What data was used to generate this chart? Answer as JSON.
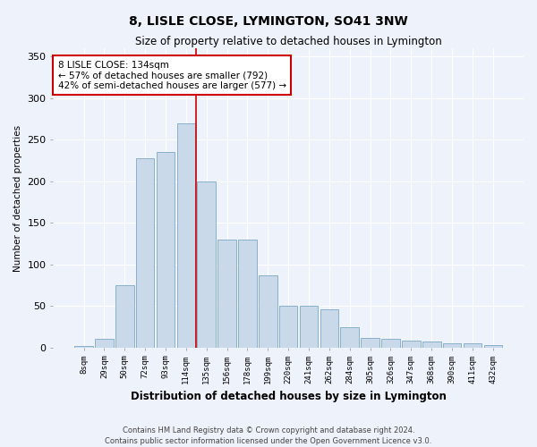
{
  "title": "8, LISLE CLOSE, LYMINGTON, SO41 3NW",
  "subtitle": "Size of property relative to detached houses in Lymington",
  "xlabel": "Distribution of detached houses by size in Lymington",
  "ylabel": "Number of detached properties",
  "categories": [
    "8sqm",
    "29sqm",
    "50sqm",
    "72sqm",
    "93sqm",
    "114sqm",
    "135sqm",
    "156sqm",
    "178sqm",
    "199sqm",
    "220sqm",
    "241sqm",
    "262sqm",
    "284sqm",
    "305sqm",
    "326sqm",
    "347sqm",
    "368sqm",
    "390sqm",
    "411sqm",
    "432sqm"
  ],
  "bar_heights": [
    2,
    10,
    75,
    228,
    235,
    270,
    200,
    130,
    130,
    87,
    50,
    50,
    46,
    25,
    12,
    10,
    8,
    7,
    5,
    5,
    3
  ],
  "bar_color": "#c9d9ea",
  "bar_edge_color": "#8ab0cc",
  "vline_index": 5.5,
  "vline_color": "#cc0000",
  "annotation_text": "8 LISLE CLOSE: 134sqm\n← 57% of detached houses are smaller (792)\n42% of semi-detached houses are larger (577) →",
  "background_color": "#eef2fa",
  "grid_color": "#ffffff",
  "footer1": "Contains HM Land Registry data © Crown copyright and database right 2024.",
  "footer2": "Contains public sector information licensed under the Open Government Licence v3.0.",
  "ylim": [
    0,
    360
  ],
  "yticks": [
    0,
    50,
    100,
    150,
    200,
    250,
    300,
    350
  ]
}
